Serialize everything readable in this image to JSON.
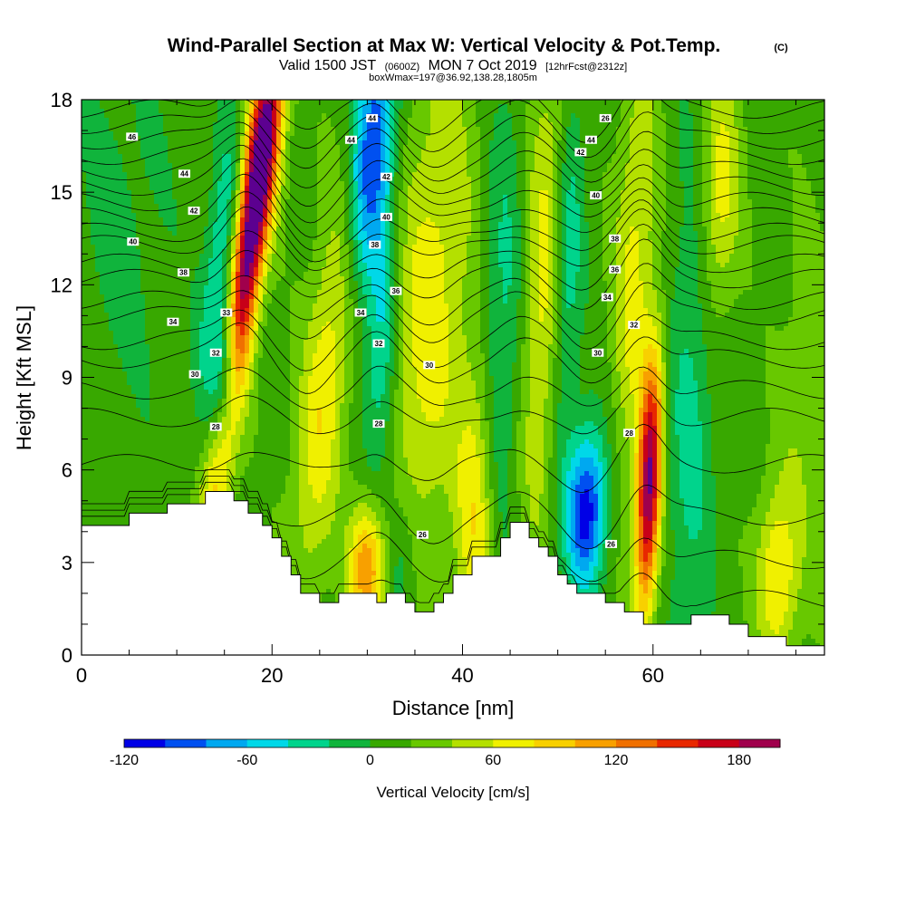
{
  "header": {
    "title": "Wind-Parallel Section at Max W: Vertical Velocity & Pot.Temp.",
    "copyright": "(C)",
    "valid_main": "Valid 1500 JST",
    "valid_utc": "(0600Z)",
    "valid_date": "MON 7 Oct 2019",
    "forecast": "[12hrFcst@2312z]",
    "box": "boxWmax=197@36.92,138.28,1805m"
  },
  "chart_data": {
    "type": "heatmap",
    "xlabel": "Distance [nm]",
    "ylabel": "Height [Kft MSL]",
    "xlim": [
      0,
      78
    ],
    "ylim": [
      0,
      18
    ],
    "x_ticks": [
      "0",
      "20",
      "40",
      "60"
    ],
    "x_tick_values": [
      0,
      20,
      40,
      60
    ],
    "y_ticks": [
      "0",
      "3",
      "6",
      "9",
      "12",
      "15",
      "18"
    ],
    "y_tick_values": [
      0,
      3,
      6,
      9,
      12,
      15,
      18
    ],
    "colorbar": {
      "label": "Vertical Velocity [cm/s]",
      "tick_labels": [
        "-120",
        "-60",
        "0",
        "60",
        "120",
        "180"
      ],
      "tick_values": [
        -120,
        -60,
        0,
        60,
        120,
        180
      ],
      "bins": [
        -120,
        -100,
        -80,
        -60,
        -40,
        -20,
        0,
        20,
        40,
        60,
        80,
        100,
        120,
        140,
        160,
        180,
        200
      ],
      "colors": [
        "#0000e6",
        "#0050f0",
        "#00a8f0",
        "#00d8e8",
        "#00d48c",
        "#10b43c",
        "#38a800",
        "#68c800",
        "#b4e000",
        "#f0f000",
        "#f8d000",
        "#f8a000",
        "#f07000",
        "#e82800",
        "#c80018",
        "#a0004c",
        "#5c0090"
      ]
    },
    "terrain_kft": {
      "x": [
        0,
        5,
        5,
        9,
        9,
        13,
        13,
        16,
        16,
        17.5,
        17.5,
        19,
        19,
        20,
        20,
        21,
        21,
        22,
        22,
        23,
        23,
        25,
        25,
        27,
        27,
        31,
        31,
        32,
        32,
        34,
        34,
        35,
        35,
        37,
        37,
        38,
        38,
        39,
        39,
        41,
        41,
        44,
        44,
        45,
        45,
        47,
        47,
        48,
        48,
        49,
        49,
        50,
        50,
        51,
        51,
        52,
        52,
        55,
        55,
        57,
        57,
        59,
        59,
        64,
        64,
        68,
        68,
        70,
        70,
        74,
        74,
        78
      ],
      "y": [
        4.2,
        4.2,
        4.6,
        4.6,
        4.9,
        4.9,
        5.3,
        5.3,
        5.0,
        5.0,
        4.6,
        4.6,
        4.2,
        4.2,
        3.8,
        3.8,
        3.2,
        3.2,
        2.6,
        2.6,
        2.0,
        2.0,
        1.7,
        1.7,
        2.0,
        2.0,
        1.7,
        1.7,
        2.0,
        2.0,
        1.7,
        1.7,
        1.4,
        1.4,
        1.7,
        1.7,
        2.0,
        2.0,
        2.6,
        2.6,
        3.2,
        3.2,
        3.8,
        3.8,
        4.3,
        4.3,
        3.8,
        3.8,
        3.5,
        3.5,
        3.2,
        3.2,
        2.6,
        2.6,
        2.3,
        2.3,
        2.0,
        2.0,
        1.7,
        1.7,
        1.4,
        1.4,
        1.0,
        1.0,
        1.3,
        1.3,
        1.0,
        1.0,
        0.6,
        0.6,
        0.3,
        0.3
      ]
    },
    "w_features": [
      {
        "x": 17.0,
        "y": 12.0,
        "sx": 1.2,
        "sy": 5.5,
        "shear": 0.42,
        "amp": 185
      },
      {
        "x": 19.2,
        "y": 16.5,
        "sx": 1.3,
        "sy": 2.5,
        "shear": 0.3,
        "amp": 100
      },
      {
        "x": 15.2,
        "y": 9.0,
        "sx": 1.0,
        "sy": 1.8,
        "shear": 0.2,
        "amp": -125
      },
      {
        "x": 14.5,
        "y": 12.5,
        "sx": 1.2,
        "sy": 3.5,
        "shear": 0.3,
        "amp": -55
      },
      {
        "x": 30.5,
        "y": 16.5,
        "sx": 1.5,
        "sy": 3.2,
        "shear": 0.25,
        "amp": -110
      },
      {
        "x": 31.5,
        "y": 10.0,
        "sx": 1.2,
        "sy": 3.5,
        "shear": 0.1,
        "amp": -60
      },
      {
        "x": 33.5,
        "y": 3.0,
        "sx": 1.3,
        "sy": 2.0,
        "shear": 0.0,
        "amp": -40
      },
      {
        "x": 25.5,
        "y": 8.5,
        "sx": 1.8,
        "sy": 4.5,
        "shear": 0.3,
        "amp": 65
      },
      {
        "x": 30.0,
        "y": 2.8,
        "sx": 1.3,
        "sy": 1.5,
        "shear": 0.0,
        "amp": 110
      },
      {
        "x": 36.5,
        "y": 11.0,
        "sx": 2.8,
        "sy": 6.0,
        "shear": 0.2,
        "amp": 60
      },
      {
        "x": 41.5,
        "y": 4.5,
        "sx": 1.5,
        "sy": 3.5,
        "shear": 0.0,
        "amp": 70
      },
      {
        "x": 44.0,
        "y": 10.0,
        "sx": 1.5,
        "sy": 6.0,
        "shear": 0.1,
        "amp": -40
      },
      {
        "x": 48.5,
        "y": 12.0,
        "sx": 1.5,
        "sy": 6.0,
        "shear": 0.1,
        "amp": 55
      },
      {
        "x": 53.0,
        "y": 4.7,
        "sx": 1.5,
        "sy": 1.8,
        "shear": 0.1,
        "amp": -125
      },
      {
        "x": 51.0,
        "y": 12.5,
        "sx": 1.1,
        "sy": 4.0,
        "shear": 0.1,
        "amp": -50
      },
      {
        "x": 59.6,
        "y": 5.5,
        "sx": 0.9,
        "sy": 3.0,
        "shear": 0.12,
        "amp": 185
      },
      {
        "x": 58.0,
        "y": 12.5,
        "sx": 1.5,
        "sy": 5.0,
        "shear": 0.1,
        "amp": 55
      },
      {
        "x": 64.0,
        "y": 8.0,
        "sx": 1.8,
        "sy": 6.0,
        "shear": 0.05,
        "amp": -40
      },
      {
        "x": 67.0,
        "y": 15.0,
        "sx": 1.5,
        "sy": 3.0,
        "shear": 0.1,
        "amp": 60
      },
      {
        "x": 73.0,
        "y": 2.5,
        "sx": 1.5,
        "sy": 2.0,
        "shear": 0.0,
        "amp": 70
      },
      {
        "x": 76.0,
        "y": 8.0,
        "sx": 2.0,
        "sy": 4.0,
        "shear": 0.0,
        "amp": 25
      },
      {
        "x": 4.0,
        "y": 14.0,
        "sx": 4.0,
        "sy": 5.0,
        "shear": 0.0,
        "amp": -18
      }
    ],
    "theta_contours": {
      "levels": [
        26,
        27,
        28,
        29,
        30,
        31,
        32,
        33,
        34,
        35,
        36,
        37,
        38,
        39,
        40,
        41,
        42,
        43,
        44,
        45,
        46,
        47
      ],
      "base_height_kft": [
        1.8,
        3.1,
        4.5,
        6.2,
        7.7,
        8.6,
        9.6,
        10.2,
        11.0,
        11.5,
        12.2,
        12.7,
        13.3,
        13.7,
        14.2,
        14.7,
        15.2,
        15.7,
        16.2,
        16.7,
        17.2,
        17.7
      ],
      "labels": [
        {
          "text": "46",
          "x": 5.3,
          "y": 16.8
        },
        {
          "text": "44",
          "x": 10.8,
          "y": 15.6
        },
        {
          "text": "42",
          "x": 11.8,
          "y": 14.4
        },
        {
          "text": "40",
          "x": 5.4,
          "y": 13.4
        },
        {
          "text": "38",
          "x": 10.7,
          "y": 12.4
        },
        {
          "text": "34",
          "x": 9.6,
          "y": 10.8
        },
        {
          "text": "30",
          "x": 11.9,
          "y": 9.1
        },
        {
          "text": "28",
          "x": 14.1,
          "y": 7.4
        },
        {
          "text": "33",
          "x": 15.2,
          "y": 11.1
        },
        {
          "text": "32",
          "x": 14.1,
          "y": 9.8
        },
        {
          "text": "44",
          "x": 30.5,
          "y": 17.4
        },
        {
          "text": "44",
          "x": 28.3,
          "y": 16.7
        },
        {
          "text": "42",
          "x": 32.0,
          "y": 15.5
        },
        {
          "text": "40",
          "x": 32.0,
          "y": 14.2
        },
        {
          "text": "38",
          "x": 30.8,
          "y": 13.3
        },
        {
          "text": "36",
          "x": 33.0,
          "y": 11.8
        },
        {
          "text": "34",
          "x": 29.3,
          "y": 11.1
        },
        {
          "text": "32",
          "x": 31.2,
          "y": 10.1
        },
        {
          "text": "30",
          "x": 36.5,
          "y": 9.4
        },
        {
          "text": "28",
          "x": 31.2,
          "y": 7.5
        },
        {
          "text": "26",
          "x": 35.8,
          "y": 3.9
        },
        {
          "text": "26",
          "x": 55.0,
          "y": 17.4
        },
        {
          "text": "44",
          "x": 53.5,
          "y": 16.7
        },
        {
          "text": "42",
          "x": 52.4,
          "y": 16.3
        },
        {
          "text": "40",
          "x": 54.0,
          "y": 14.9
        },
        {
          "text": "38",
          "x": 56.0,
          "y": 13.5
        },
        {
          "text": "36",
          "x": 56.0,
          "y": 12.5
        },
        {
          "text": "34",
          "x": 55.2,
          "y": 11.6
        },
        {
          "text": "32",
          "x": 58.0,
          "y": 10.7
        },
        {
          "text": "30",
          "x": 54.2,
          "y": 9.8
        },
        {
          "text": "28",
          "x": 57.5,
          "y": 7.2
        },
        {
          "text": "26",
          "x": 55.6,
          "y": 3.6
        }
      ]
    }
  }
}
